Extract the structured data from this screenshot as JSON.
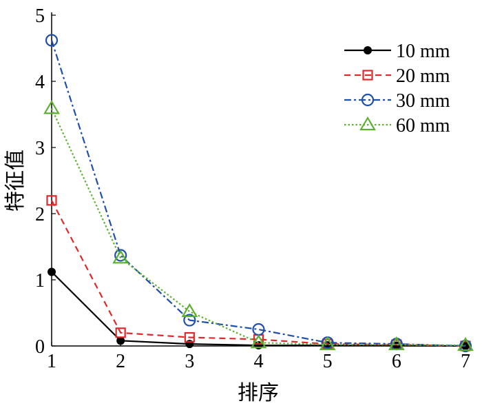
{
  "chart_data": {
    "type": "line",
    "title": "",
    "xlabel": "排序",
    "ylabel": "特征值",
    "xlim": [
      1,
      7
    ],
    "ylim": [
      0,
      5
    ],
    "x": [
      1,
      2,
      3,
      4,
      5,
      6,
      7
    ],
    "xticks": [
      "1",
      "2",
      "3",
      "4",
      "5",
      "6",
      "7"
    ],
    "yticks": [
      "0",
      "1",
      "2",
      "3",
      "4",
      "5"
    ],
    "grid": false,
    "legend_position": "top-right",
    "series": [
      {
        "name": "10 mm",
        "color": "#000000",
        "marker": "filled-circle",
        "dash": "solid",
        "values": [
          1.12,
          0.08,
          0.03,
          0.01,
          0.01,
          0.005,
          0.0
        ]
      },
      {
        "name": "20 mm",
        "color": "#e0282a",
        "marker": "square",
        "dash": "dashed",
        "values": [
          2.2,
          0.2,
          0.13,
          0.1,
          0.03,
          0.02,
          0.0
        ]
      },
      {
        "name": "30 mm",
        "color": "#1f4fa8",
        "marker": "circle",
        "dash": "dashdot",
        "values": [
          4.62,
          1.37,
          0.39,
          0.25,
          0.05,
          0.03,
          0.0
        ]
      },
      {
        "name": "60 mm",
        "color": "#5cb030",
        "marker": "triangle",
        "dash": "dotted",
        "values": [
          3.59,
          1.33,
          0.52,
          0.05,
          0.02,
          0.02,
          0.01
        ]
      }
    ]
  }
}
